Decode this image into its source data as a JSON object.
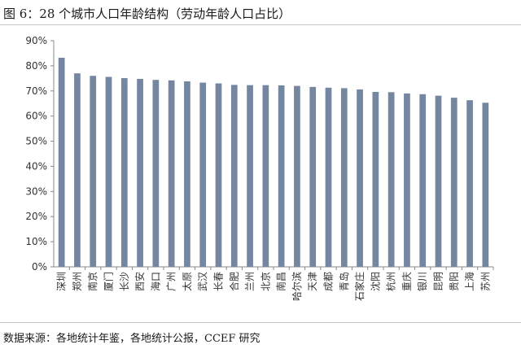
{
  "title": "图 6：28 个城市人口年龄结构（劳动年龄人口占比）",
  "source": "数据来源：各地统计年鉴，各地统计公报，CCEF 研究",
  "chart_data": {
    "type": "bar",
    "categories": [
      "深圳",
      "郑州",
      "南京",
      "厦门",
      "长沙",
      "西安",
      "海口",
      "广州",
      "太原",
      "武汉",
      "长春",
      "合肥",
      "兰州",
      "北京",
      "南昌",
      "哈尔滨",
      "天津",
      "成都",
      "青岛",
      "石家庄",
      "沈阳",
      "杭州",
      "重庆",
      "银川",
      "昆明",
      "贵阳",
      "上海",
      "苏州"
    ],
    "values": [
      83.2,
      77.0,
      76.0,
      75.6,
      75.1,
      74.8,
      74.4,
      74.2,
      73.8,
      73.3,
      73.0,
      72.4,
      72.3,
      72.3,
      72.2,
      72.0,
      71.6,
      71.3,
      71.1,
      70.6,
      69.6,
      69.5,
      69.0,
      68.7,
      68.1,
      67.3,
      66.3,
      65.3
    ],
    "ylim": [
      0,
      90
    ],
    "yticks": [
      "0%",
      "10%",
      "20%",
      "30%",
      "40%",
      "50%",
      "60%",
      "70%",
      "80%",
      "90%"
    ],
    "bar_color": "#7486a0",
    "grid": false,
    "legend": "none"
  }
}
